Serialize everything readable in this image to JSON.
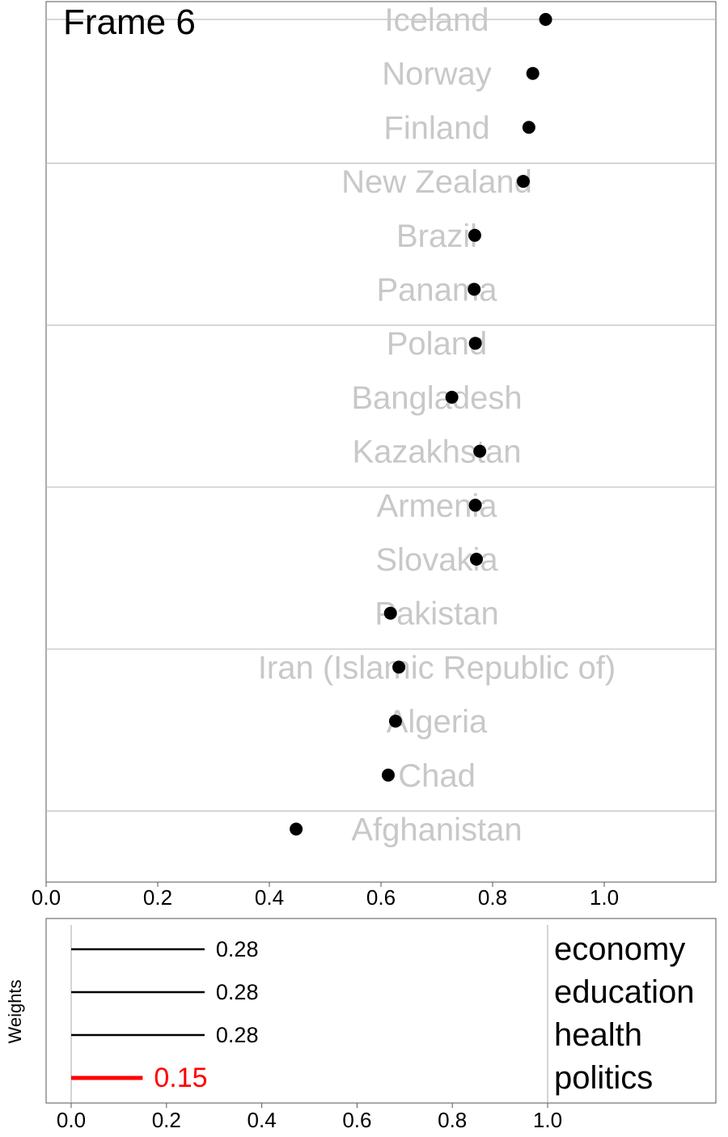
{
  "frame_label": "Frame 6",
  "chart_data": [
    {
      "type": "scatter",
      "title": "",
      "xlabel": "",
      "ylabel": "",
      "xlim": [
        0,
        1.2
      ],
      "xticks": [
        "0.0",
        "0.2",
        "0.4",
        "0.6",
        "0.8",
        "1.0"
      ],
      "grid": false,
      "countries": [
        {
          "name": "Iceland",
          "value": 0.895
        },
        {
          "name": "Norway",
          "value": 0.872
        },
        {
          "name": "Finland",
          "value": 0.865
        },
        {
          "name": "New Zealand",
          "value": 0.855
        },
        {
          "name": "Brazil",
          "value": 0.768
        },
        {
          "name": "Panama",
          "value": 0.767
        },
        {
          "name": "Poland",
          "value": 0.769
        },
        {
          "name": "Bangladesh",
          "value": 0.727
        },
        {
          "name": "Kazakhstan",
          "value": 0.777
        },
        {
          "name": "Armenia",
          "value": 0.769
        },
        {
          "name": "Slovakia",
          "value": 0.771
        },
        {
          "name": "Pakistan",
          "value": 0.617
        },
        {
          "name": "Iran (Islamic Republic of)",
          "value": 0.632
        },
        {
          "name": "Algeria",
          "value": 0.626
        },
        {
          "name": "Chad",
          "value": 0.613
        },
        {
          "name": "Afghanistan",
          "value": 0.448
        }
      ],
      "group_separators_after_rank": [
        3,
        6,
        9,
        12,
        15
      ],
      "colors": {
        "point": "#000000",
        "country_label": "#c8c8c8",
        "separator": "#bdbdbd",
        "frame": "#555555"
      }
    },
    {
      "type": "bar",
      "title": "",
      "ylabel": "Weights",
      "xlim": [
        0,
        1.4
      ],
      "xticks": [
        "0.0",
        "0.2",
        "0.4",
        "0.6",
        "0.8",
        "1.0"
      ],
      "categories": [
        "economy",
        "education",
        "health",
        "politics"
      ],
      "values": [
        0.28,
        0.28,
        0.28,
        0.15
      ],
      "value_labels": [
        "0.28",
        "0.28",
        "0.28",
        "0.15"
      ],
      "highlighted": "politics",
      "colors": {
        "normal": "#000000",
        "highlight": "#ff0000"
      }
    }
  ]
}
